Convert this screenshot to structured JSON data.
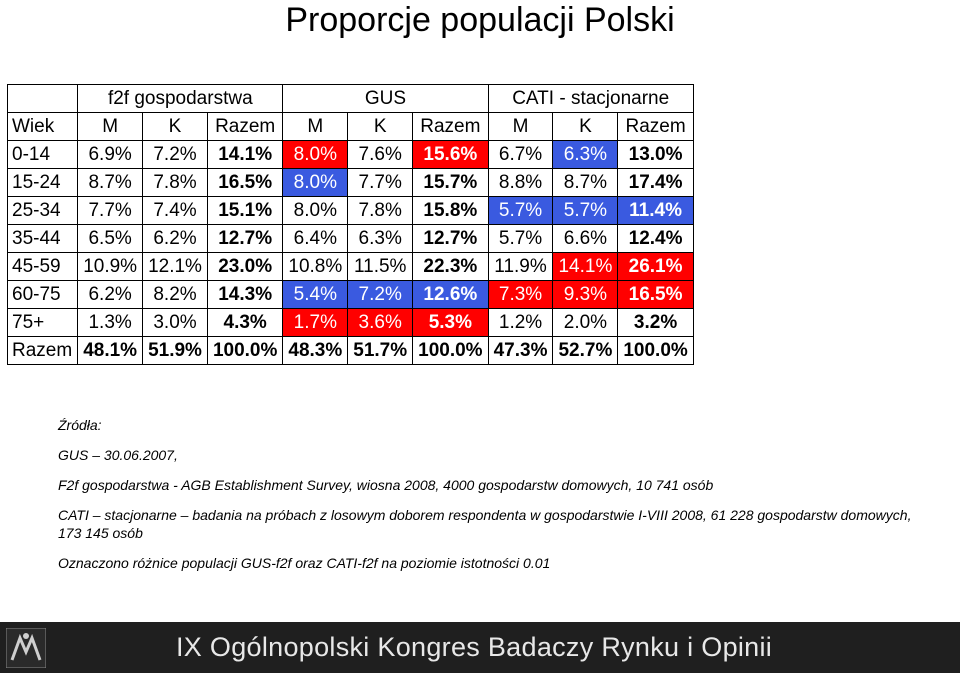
{
  "title": "Proporcje populacji Polski",
  "table": {
    "groups": [
      "",
      "f2f gospodarstwa",
      "GUS",
      "CATI - stacjonarne"
    ],
    "subheader": [
      "Wiek",
      "M",
      "K",
      "Razem",
      "M",
      "K",
      "Razem",
      "M",
      "K",
      "Razem"
    ],
    "rows": [
      {
        "label": "0-14",
        "cells": [
          "6.9%",
          "7.2%",
          "14.1%",
          "8.0%",
          "7.6%",
          "15.6%",
          "6.7%",
          "6.3%",
          "13.0%"
        ],
        "hl": [
          "",
          "",
          "",
          "red",
          "",
          "red",
          "",
          "blue",
          ""
        ]
      },
      {
        "label": "15-24",
        "cells": [
          "8.7%",
          "7.8%",
          "16.5%",
          "8.0%",
          "7.7%",
          "15.7%",
          "8.8%",
          "8.7%",
          "17.4%"
        ],
        "hl": [
          "",
          "",
          "",
          "blue",
          "",
          "",
          "",
          "",
          ""
        ]
      },
      {
        "label": "25-34",
        "cells": [
          "7.7%",
          "7.4%",
          "15.1%",
          "8.0%",
          "7.8%",
          "15.8%",
          "5.7%",
          "5.7%",
          "11.4%"
        ],
        "hl": [
          "",
          "",
          "",
          "",
          "",
          "",
          "blue",
          "blue",
          "blue"
        ]
      },
      {
        "label": "35-44",
        "cells": [
          "6.5%",
          "6.2%",
          "12.7%",
          "6.4%",
          "6.3%",
          "12.7%",
          "5.7%",
          "6.6%",
          "12.4%"
        ],
        "hl": [
          "",
          "",
          "",
          "",
          "",
          "",
          "",
          "",
          ""
        ]
      },
      {
        "label": "45-59",
        "cells": [
          "10.9%",
          "12.1%",
          "23.0%",
          "10.8%",
          "11.5%",
          "22.3%",
          "11.9%",
          "14.1%",
          "26.1%"
        ],
        "hl": [
          "",
          "",
          "",
          "",
          "",
          "",
          "",
          "red",
          "red"
        ]
      },
      {
        "label": "60-75",
        "cells": [
          "6.2%",
          "8.2%",
          "14.3%",
          "5.4%",
          "7.2%",
          "12.6%",
          "7.3%",
          "9.3%",
          "16.5%"
        ],
        "hl": [
          "",
          "",
          "",
          "blue",
          "blue",
          "blue",
          "red",
          "red",
          "red"
        ]
      },
      {
        "label": "75+",
        "cells": [
          "1.3%",
          "3.0%",
          "4.3%",
          "1.7%",
          "3.6%",
          "5.3%",
          "1.2%",
          "2.0%",
          "3.2%"
        ],
        "hl": [
          "",
          "",
          "",
          "red",
          "red",
          "red",
          "",
          "",
          ""
        ]
      },
      {
        "label": "Razem",
        "cells": [
          "48.1%",
          "51.9%",
          "100.0%",
          "48.3%",
          "51.7%",
          "100.0%",
          "47.3%",
          "52.7%",
          "100.0%"
        ],
        "hl": [
          "",
          "",
          "",
          "",
          "",
          "",
          "",
          "",
          ""
        ]
      }
    ]
  },
  "sources": {
    "heading": "Źródła:",
    "lines": [
      "GUS – 30.06.2007,",
      "F2f gospodarstwa - AGB Establishment Survey, wiosna 2008, 4000 gospodarstw domowych, 10 741 osób",
      "CATI – stacjonarne – badania na próbach z losowym doborem respondenta w gospodarstwie I-VIII 2008, 61 228 gospodarstw domowych, 173 145 osób",
      "Oznaczono różnice populacji GUS-f2f oraz CATI-f2f na poziomie istotności 0.01"
    ]
  },
  "footer": {
    "text": "IX Ogólnopolski Kongres Badaczy Rynku i Opinii",
    "logo_icon": "congress-logo-icon",
    "bg_color": "#1f1f1f"
  },
  "colors": {
    "red": "#ff0000",
    "blue": "#3a5ae0"
  }
}
